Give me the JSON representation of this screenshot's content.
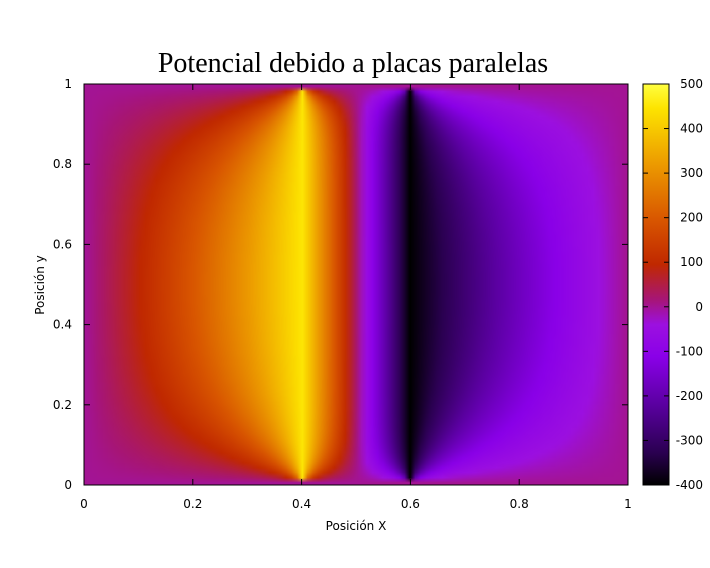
{
  "chart_data": {
    "type": "heatmap",
    "title": "Potencial debido a placas paralelas",
    "xlabel": "Posición X",
    "ylabel": "Posición y",
    "xlim": [
      0,
      1
    ],
    "ylim": [
      0,
      1
    ],
    "x_ticks": [
      "0",
      "0.2",
      "0.4",
      "0.6",
      "0.8",
      "1"
    ],
    "y_ticks": [
      "0",
      "0.2",
      "0.4",
      "0.6",
      "0.8",
      "1"
    ],
    "colorbar": {
      "range": [
        -400,
        500
      ],
      "ticks": [
        "500",
        "400",
        "300",
        "200",
        "100",
        "0",
        "-100",
        "-200",
        "-300",
        "-400"
      ],
      "palette": [
        "#000000",
        "#2a0050",
        "#5a00a0",
        "#8a00e8",
        "#9c10e0",
        "#a6157a",
        "#c02800",
        "#d85500",
        "#ec9a00",
        "#fde400",
        "#ffff40"
      ]
    },
    "plates": [
      {
        "x": 0.4,
        "potential": 450,
        "y_range": [
          0,
          1
        ]
      },
      {
        "x": 0.6,
        "potential": -400,
        "y_range": [
          0,
          1
        ]
      }
    ],
    "boundary_potential": 0,
    "grid": false,
    "legend": "colorbar-right"
  }
}
